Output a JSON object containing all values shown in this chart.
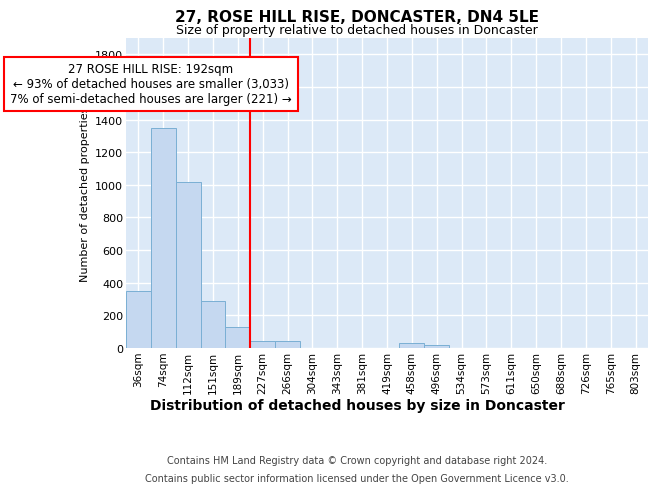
{
  "title": "27, ROSE HILL RISE, DONCASTER, DN4 5LE",
  "subtitle": "Size of property relative to detached houses in Doncaster",
  "xlabel": "Distribution of detached houses by size in Doncaster",
  "ylabel": "Number of detached properties",
  "categories": [
    "36sqm",
    "74sqm",
    "112sqm",
    "151sqm",
    "189sqm",
    "227sqm",
    "266sqm",
    "304sqm",
    "343sqm",
    "381sqm",
    "419sqm",
    "458sqm",
    "496sqm",
    "534sqm",
    "573sqm",
    "611sqm",
    "650sqm",
    "688sqm",
    "726sqm",
    "765sqm",
    "803sqm"
  ],
  "values": [
    350,
    1350,
    1020,
    290,
    130,
    45,
    40,
    0,
    0,
    0,
    0,
    30,
    20,
    0,
    0,
    0,
    0,
    0,
    0,
    0,
    0
  ],
  "bar_color": "#c5d8f0",
  "bar_edge_color": "#7aafd4",
  "red_line_index": 4,
  "annotation_line1": "27 ROSE HILL RISE: 192sqm",
  "annotation_line2": "← 93% of detached houses are smaller (3,033)",
  "annotation_line3": "7% of semi-detached houses are larger (221) →",
  "ylim": [
    0,
    1900
  ],
  "yticks": [
    0,
    200,
    400,
    600,
    800,
    1000,
    1200,
    1400,
    1600,
    1800
  ],
  "footer1": "Contains HM Land Registry data © Crown copyright and database right 2024.",
  "footer2": "Contains public sector information licensed under the Open Government Licence v3.0.",
  "bg_color": "#dce9f7",
  "grid_color": "white"
}
